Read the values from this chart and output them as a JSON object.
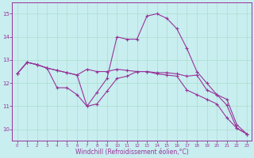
{
  "x": [
    0,
    1,
    2,
    3,
    4,
    5,
    6,
    7,
    8,
    9,
    10,
    11,
    12,
    13,
    14,
    15,
    16,
    17,
    18,
    19,
    20,
    21,
    22,
    23
  ],
  "line1": [
    12.4,
    12.9,
    12.8,
    12.65,
    12.55,
    12.45,
    12.35,
    12.6,
    12.5,
    12.5,
    12.6,
    12.55,
    12.5,
    12.5,
    12.4,
    12.35,
    12.3,
    11.7,
    11.5,
    11.3,
    11.1,
    10.5,
    10.05,
    9.8
  ],
  "line2": [
    12.4,
    12.9,
    12.8,
    12.65,
    12.55,
    12.45,
    12.35,
    11.0,
    11.6,
    12.2,
    14.0,
    13.9,
    13.9,
    14.9,
    15.0,
    14.8,
    14.35,
    13.5,
    12.5,
    12.0,
    11.5,
    11.05,
    10.05,
    9.8
  ],
  "line3": [
    12.4,
    12.9,
    12.8,
    12.65,
    11.8,
    11.8,
    11.5,
    11.0,
    11.1,
    11.65,
    12.2,
    12.3,
    12.5,
    12.5,
    12.45,
    12.45,
    12.4,
    12.3,
    12.35,
    11.7,
    11.5,
    11.3,
    10.2,
    9.8
  ],
  "xlim": [
    -0.5,
    23.5
  ],
  "ylim": [
    9.5,
    15.5
  ],
  "yticks": [
    10,
    11,
    12,
    13,
    14,
    15
  ],
  "xticks": [
    0,
    1,
    2,
    3,
    4,
    5,
    6,
    7,
    8,
    9,
    10,
    11,
    12,
    13,
    14,
    15,
    16,
    17,
    18,
    19,
    20,
    21,
    22,
    23
  ],
  "xlabel": "Windchill (Refroidissement éolien,°C)",
  "line_color": "#993399",
  "bg_color": "#c8eef0",
  "grid_color": "#aaddcc",
  "marker": "+"
}
